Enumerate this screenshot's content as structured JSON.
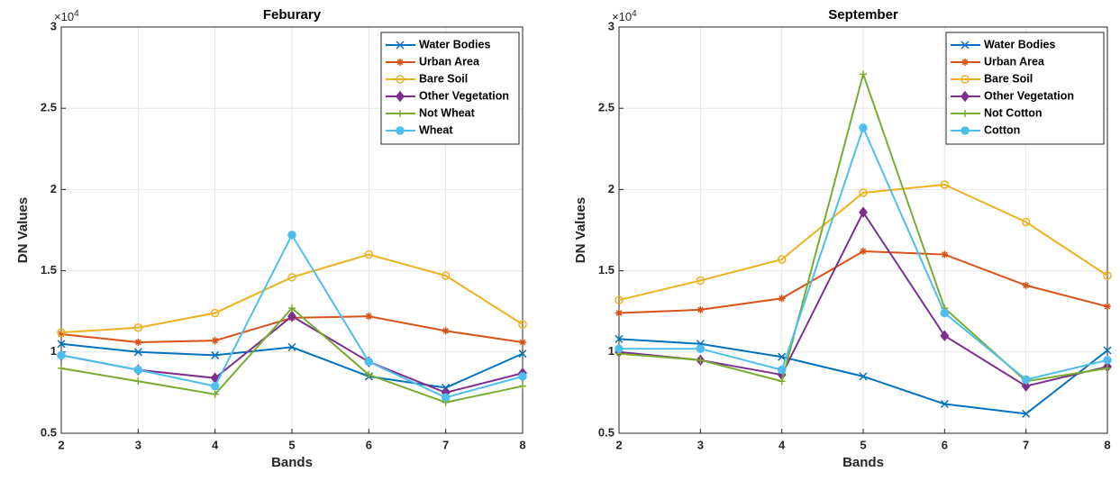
{
  "chart_data": [
    {
      "type": "line",
      "title": "Feburary",
      "xlabel": "Bands",
      "ylabel": "DN Values",
      "y_exponent_base": "×10",
      "y_exponent_power": "4",
      "x": [
        2,
        3,
        4,
        5,
        6,
        7,
        8
      ],
      "xlim": [
        2,
        8
      ],
      "xticks": [
        2,
        3,
        4,
        5,
        6,
        7,
        8
      ],
      "ylim": [
        0.5,
        3
      ],
      "yticks": [
        0.5,
        1,
        1.5,
        2,
        2.5,
        3
      ],
      "grid": true,
      "legend": "northeast",
      "series": [
        {
          "name": "Water Bodies",
          "color": "#0072BD",
          "marker": "x",
          "values": [
            1.05,
            1.0,
            0.98,
            1.03,
            0.85,
            0.78,
            0.99
          ]
        },
        {
          "name": "Urban Area",
          "color": "#D95319",
          "marker": "star",
          "values": [
            1.11,
            1.06,
            1.07,
            1.21,
            1.22,
            1.13,
            1.06
          ]
        },
        {
          "name": "Bare Soil",
          "color": "#EDB120",
          "marker": "circle",
          "values": [
            1.12,
            1.15,
            1.24,
            1.46,
            1.6,
            1.47,
            1.17
          ]
        },
        {
          "name": "Other Vegetation",
          "color": "#7E2F8E",
          "marker": "diamond",
          "values": [
            0.98,
            0.89,
            0.84,
            1.22,
            0.94,
            0.75,
            0.87
          ]
        },
        {
          "name": "Not Wheat",
          "color": "#77AC30",
          "marker": "plus",
          "values": [
            0.9,
            0.82,
            0.74,
            1.27,
            0.86,
            0.69,
            0.79
          ]
        },
        {
          "name": "Wheat",
          "color": "#4DBEEE",
          "marker": "dot",
          "values": [
            0.98,
            0.89,
            0.79,
            1.72,
            0.94,
            0.72,
            0.85
          ]
        }
      ]
    },
    {
      "type": "line",
      "title": "September",
      "xlabel": "Bands",
      "ylabel": "DN Values",
      "y_exponent_base": "×10",
      "y_exponent_power": "4",
      "x": [
        2,
        3,
        4,
        5,
        6,
        7,
        8
      ],
      "xlim": [
        2,
        8
      ],
      "xticks": [
        2,
        3,
        4,
        5,
        6,
        7,
        8
      ],
      "ylim": [
        0.5,
        3
      ],
      "yticks": [
        0.5,
        1,
        1.5,
        2,
        2.5,
        3
      ],
      "grid": true,
      "legend": "northeast",
      "series": [
        {
          "name": "Water Bodies",
          "color": "#0072BD",
          "marker": "x",
          "values": [
            1.08,
            1.05,
            0.97,
            0.85,
            0.68,
            0.62,
            1.01
          ]
        },
        {
          "name": "Urban Area",
          "color": "#D95319",
          "marker": "star",
          "values": [
            1.24,
            1.26,
            1.33,
            1.62,
            1.6,
            1.41,
            1.28
          ]
        },
        {
          "name": "Bare Soil",
          "color": "#EDB120",
          "marker": "circle",
          "values": [
            1.32,
            1.44,
            1.57,
            1.98,
            2.03,
            1.8,
            1.47
          ]
        },
        {
          "name": "Other Vegetation",
          "color": "#7E2F8E",
          "marker": "diamond",
          "values": [
            1.0,
            0.95,
            0.86,
            1.86,
            1.1,
            0.79,
            0.91
          ]
        },
        {
          "name": "Not Cotton",
          "color": "#77AC30",
          "marker": "plus",
          "values": [
            0.99,
            0.95,
            0.82,
            2.71,
            1.27,
            0.82,
            0.9
          ]
        },
        {
          "name": "Cotton",
          "color": "#4DBEEE",
          "marker": "dot",
          "values": [
            1.02,
            1.02,
            0.89,
            2.38,
            1.24,
            0.83,
            0.95
          ]
        }
      ]
    }
  ]
}
